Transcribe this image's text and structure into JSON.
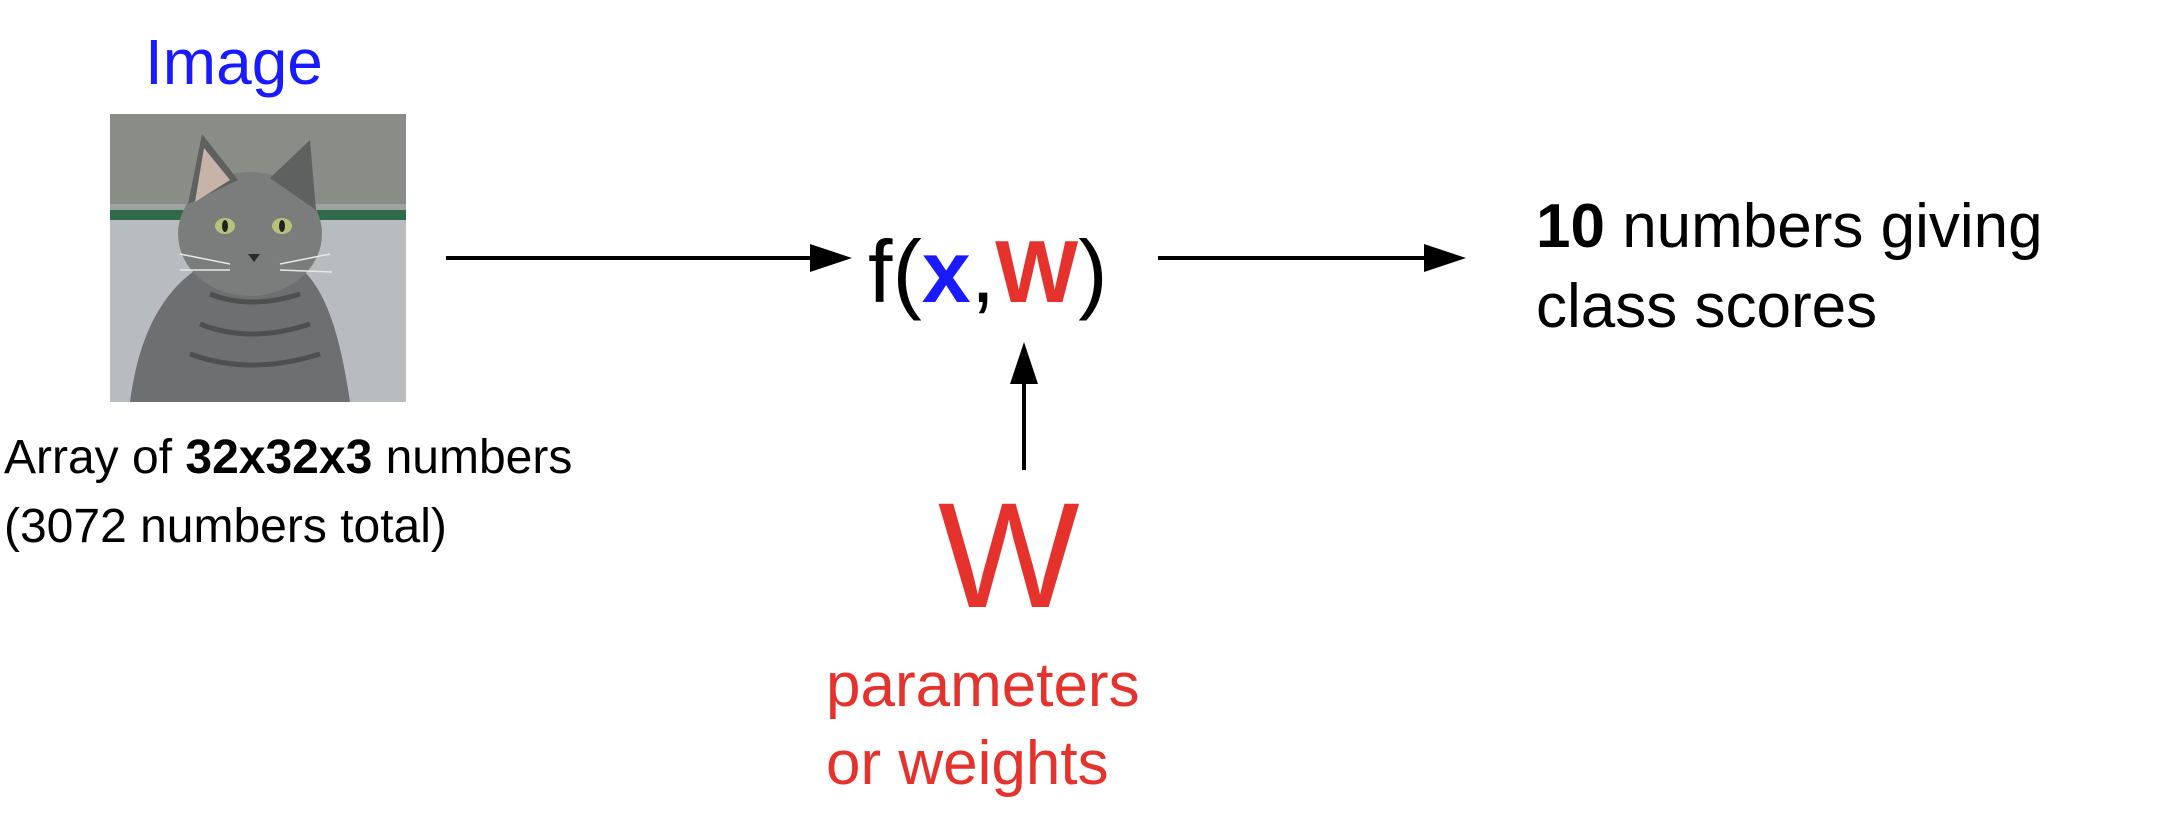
{
  "image_label": "Image",
  "input_caption": {
    "line1_pre": "Array of ",
    "line1_bold": "32x32x3",
    "line1_post": " numbers",
    "line2": "(3072 numbers total)"
  },
  "function": {
    "open": "f(",
    "x": "x",
    "comma": ",",
    "w": "W",
    "close": ")"
  },
  "weights": {
    "symbol": "W",
    "line1": "parameters",
    "line2": "or weights"
  },
  "output": {
    "bold": "10",
    "line1_rest": " numbers giving",
    "line2": "class scores"
  },
  "colors": {
    "blue": "#1a1aff",
    "red": "#e5322d",
    "black": "#000000"
  }
}
